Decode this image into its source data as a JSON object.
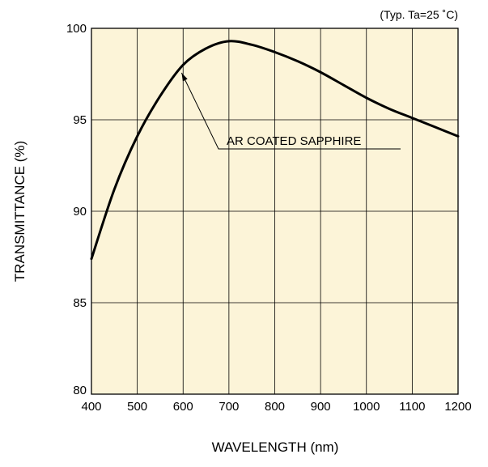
{
  "chart_data": {
    "type": "line",
    "xlabel": "WAVELENGTH (nm)",
    "ylabel": "TRANSMITTANCE (%)",
    "condition_note": "(Typ. Ta=25 ˚C)",
    "xlim": [
      400,
      1200
    ],
    "ylim": [
      80,
      100
    ],
    "x_ticks": [
      400,
      500,
      600,
      700,
      800,
      900,
      1000,
      1100,
      1200
    ],
    "y_ticks": [
      80,
      85,
      90,
      95,
      100
    ],
    "grid": true,
    "plot_background": "#fcf4d8",
    "series": [
      {
        "name": "AR COATED SAPPHIRE",
        "color": "#000000",
        "x": [
          400,
          450,
          500,
          550,
          600,
          650,
          700,
          750,
          800,
          850,
          900,
          950,
          1000,
          1050,
          1100,
          1150,
          1200
        ],
        "y": [
          87.4,
          91.2,
          94.1,
          96.3,
          98.0,
          98.9,
          99.3,
          99.1,
          98.7,
          98.2,
          97.6,
          96.9,
          96.2,
          95.6,
          95.1,
          94.6,
          94.1
        ]
      }
    ],
    "annotation": {
      "text": "AR COATED SAPPHIRE",
      "points_to": {
        "x": 595,
        "y": 97.7
      }
    }
  }
}
